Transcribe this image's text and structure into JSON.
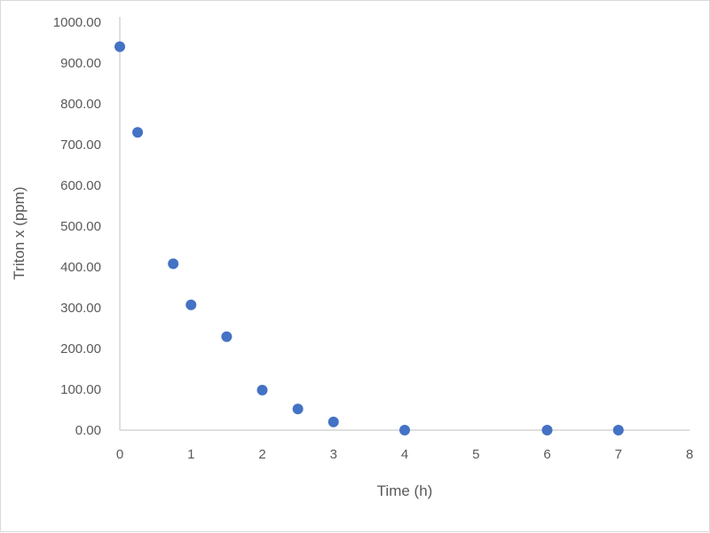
{
  "chart_data": {
    "type": "scatter",
    "xlabel": "Time (h)",
    "ylabel": "Triton x (ppm)",
    "xlim": [
      0,
      8
    ],
    "ylim": [
      0,
      1000
    ],
    "x_ticks": [
      0,
      1,
      2,
      3,
      4,
      5,
      6,
      7,
      8
    ],
    "y_ticks": [
      "0.00",
      "100.00",
      "200.00",
      "300.00",
      "400.00",
      "500.00",
      "600.00",
      "700.00",
      "800.00",
      "900.00",
      "1000.00"
    ],
    "grid": false,
    "legend": "none",
    "marker_color": "#4472C4",
    "series": [
      {
        "x": [
          0,
          0.25,
          0.75,
          1,
          1.5,
          2,
          2.5,
          3,
          4,
          6,
          7
        ],
        "y": [
          940,
          730,
          408,
          307,
          229,
          98,
          52,
          20,
          0,
          0,
          0
        ]
      }
    ]
  }
}
